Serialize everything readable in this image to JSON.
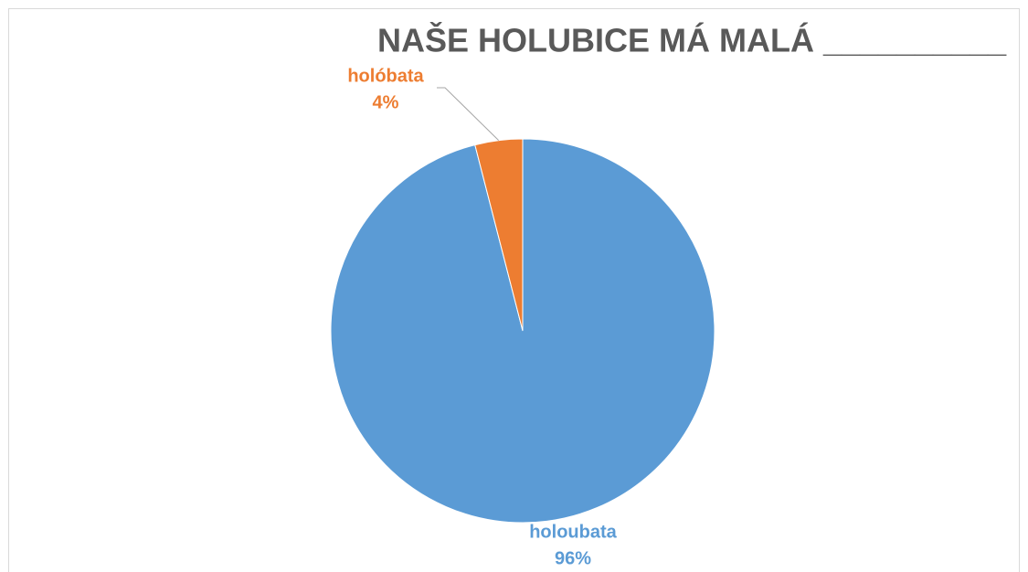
{
  "chart_data": {
    "type": "pie",
    "title": "NAŠE HOLUBICE MÁ MALÁ __________",
    "categories": [
      "holoubata",
      "holóbata"
    ],
    "values": [
      96,
      4
    ],
    "value_labels": [
      "96%",
      "4%"
    ],
    "colors": [
      "#5b9bd5",
      "#ed7d31"
    ]
  }
}
